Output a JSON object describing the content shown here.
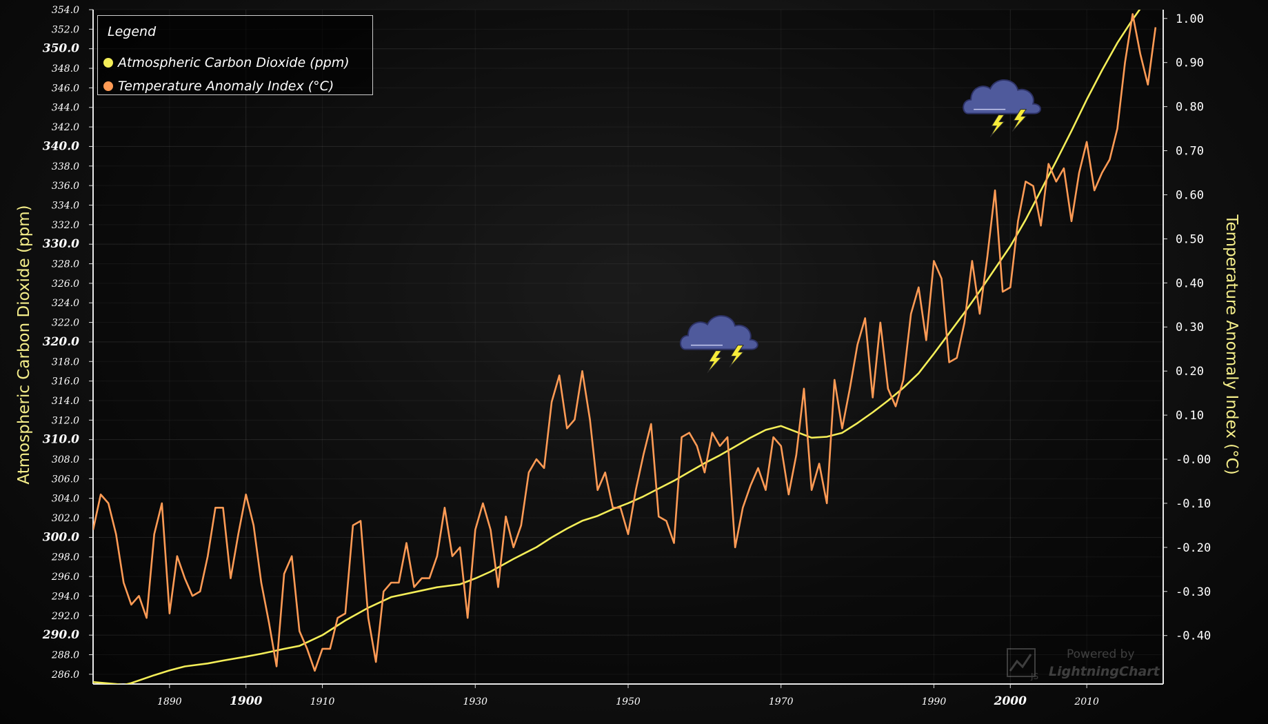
{
  "chart_data": {
    "type": "line",
    "title": "",
    "xlabel": "",
    "x_ticks": [
      1890,
      1900,
      1910,
      1930,
      1950,
      1970,
      1990,
      2000,
      2010
    ],
    "x_major_ticks": [
      1900,
      2000
    ],
    "xlim": [
      1880,
      2020
    ],
    "left_axis": {
      "label": "Atmospheric Carbon Dioxide (ppm)",
      "ylim": [
        285,
        354
      ],
      "ticks": [
        "286.0",
        "288.0",
        "290.0",
        "292.0",
        "294.0",
        "296.0",
        "298.0",
        "300.0",
        "302.0",
        "304.0",
        "306.0",
        "308.0",
        "310.0",
        "312.0",
        "314.0",
        "316.0",
        "318.0",
        "320.0",
        "322.0",
        "324.0",
        "326.0",
        "328.0",
        "330.0",
        "332.0",
        "334.0",
        "336.0",
        "338.0",
        "340.0",
        "342.0",
        "344.0",
        "346.0",
        "348.0",
        "350.0",
        "352.0",
        "354.0"
      ],
      "major_ticks": [
        "290.0",
        "300.0",
        "310.0",
        "320.0",
        "330.0",
        "340.0",
        "350.0"
      ]
    },
    "right_axis": {
      "label": "Temperature Anomaly Index (°C)",
      "ylim": [
        -0.51,
        1.02
      ],
      "ticks": [
        "-0.40",
        "-0.30",
        "-0.20",
        "-0.10",
        "-0.00",
        "0.10",
        "0.20",
        "0.30",
        "0.40",
        "0.50",
        "0.60",
        "0.70",
        "0.80",
        "0.90",
        "1.00"
      ]
    },
    "series": [
      {
        "name": "Atmospheric Carbon Dioxide (ppm)",
        "axis": "left",
        "color": "#f4ee58",
        "points": [
          [
            1880,
            285.2
          ],
          [
            1883,
            285.0
          ],
          [
            1884,
            284.9
          ],
          [
            1885,
            285.1
          ],
          [
            1888,
            285.9
          ],
          [
            1890,
            286.4
          ],
          [
            1892,
            286.8
          ],
          [
            1895,
            287.1
          ],
          [
            1897,
            287.4
          ],
          [
            1900,
            287.8
          ],
          [
            1902,
            288.1
          ],
          [
            1905,
            288.6
          ],
          [
            1907,
            288.9
          ],
          [
            1910,
            290.0
          ],
          [
            1913,
            291.5
          ],
          [
            1916,
            292.8
          ],
          [
            1919,
            293.9
          ],
          [
            1922,
            294.4
          ],
          [
            1925,
            294.9
          ],
          [
            1928,
            295.2
          ],
          [
            1930,
            295.8
          ],
          [
            1932,
            296.5
          ],
          [
            1935,
            297.8
          ],
          [
            1938,
            299.0
          ],
          [
            1940,
            300.0
          ],
          [
            1942,
            300.9
          ],
          [
            1944,
            301.7
          ],
          [
            1946,
            302.2
          ],
          [
            1948,
            302.9
          ],
          [
            1950,
            303.5
          ],
          [
            1952,
            304.2
          ],
          [
            1954,
            305.0
          ],
          [
            1956,
            305.8
          ],
          [
            1958,
            306.7
          ],
          [
            1960,
            307.6
          ],
          [
            1962,
            308.4
          ],
          [
            1964,
            309.3
          ],
          [
            1966,
            310.2
          ],
          [
            1968,
            311.0
          ],
          [
            1970,
            311.4
          ],
          [
            1972,
            310.8
          ],
          [
            1974,
            310.2
          ],
          [
            1976,
            310.3
          ],
          [
            1978,
            310.7
          ],
          [
            1980,
            311.7
          ],
          [
            1982,
            312.8
          ],
          [
            1984,
            314.0
          ],
          [
            1986,
            315.3
          ],
          [
            1988,
            316.8
          ],
          [
            1990,
            318.8
          ],
          [
            1992,
            320.9
          ],
          [
            1994,
            323.0
          ],
          [
            1996,
            325.2
          ],
          [
            1998,
            327.5
          ],
          [
            2000,
            329.8
          ],
          [
            2002,
            332.5
          ],
          [
            2004,
            335.5
          ],
          [
            2006,
            338.5
          ],
          [
            2008,
            341.6
          ],
          [
            2010,
            344.8
          ],
          [
            2012,
            347.8
          ],
          [
            2014,
            350.6
          ],
          [
            2016,
            353.0
          ],
          [
            2018,
            355.2
          ],
          [
            2020,
            357.4
          ]
        ]
      },
      {
        "name": "Temperature Anomaly Index (°C)",
        "axis": "right",
        "color": "#ff9b55",
        "points": [
          [
            1880,
            -0.16
          ],
          [
            1881,
            -0.08
          ],
          [
            1882,
            -0.1
          ],
          [
            1883,
            -0.17
          ],
          [
            1884,
            -0.28
          ],
          [
            1885,
            -0.33
          ],
          [
            1886,
            -0.31
          ],
          [
            1887,
            -0.36
          ],
          [
            1888,
            -0.17
          ],
          [
            1889,
            -0.1
          ],
          [
            1890,
            -0.35
          ],
          [
            1891,
            -0.22
          ],
          [
            1892,
            -0.27
          ],
          [
            1893,
            -0.31
          ],
          [
            1894,
            -0.3
          ],
          [
            1895,
            -0.22
          ],
          [
            1896,
            -0.11
          ],
          [
            1897,
            -0.11
          ],
          [
            1898,
            -0.27
          ],
          [
            1899,
            -0.17
          ],
          [
            1900,
            -0.08
          ],
          [
            1901,
            -0.15
          ],
          [
            1902,
            -0.28
          ],
          [
            1903,
            -0.37
          ],
          [
            1904,
            -0.47
          ],
          [
            1905,
            -0.26
          ],
          [
            1906,
            -0.22
          ],
          [
            1907,
            -0.39
          ],
          [
            1908,
            -0.43
          ],
          [
            1909,
            -0.48
          ],
          [
            1910,
            -0.43
          ],
          [
            1911,
            -0.43
          ],
          [
            1912,
            -0.36
          ],
          [
            1913,
            -0.35
          ],
          [
            1914,
            -0.15
          ],
          [
            1915,
            -0.14
          ],
          [
            1916,
            -0.36
          ],
          [
            1917,
            -0.46
          ],
          [
            1918,
            -0.3
          ],
          [
            1919,
            -0.28
          ],
          [
            1920,
            -0.28
          ],
          [
            1921,
            -0.19
          ],
          [
            1922,
            -0.29
          ],
          [
            1923,
            -0.27
          ],
          [
            1924,
            -0.27
          ],
          [
            1925,
            -0.22
          ],
          [
            1926,
            -0.11
          ],
          [
            1927,
            -0.22
          ],
          [
            1928,
            -0.2
          ],
          [
            1929,
            -0.36
          ],
          [
            1930,
            -0.16
          ],
          [
            1931,
            -0.1
          ],
          [
            1932,
            -0.16
          ],
          [
            1933,
            -0.29
          ],
          [
            1934,
            -0.13
          ],
          [
            1935,
            -0.2
          ],
          [
            1936,
            -0.15
          ],
          [
            1937,
            -0.03
          ],
          [
            1938,
            -0.0
          ],
          [
            1939,
            -0.02
          ],
          [
            1940,
            0.13
          ],
          [
            1941,
            0.19
          ],
          [
            1942,
            0.07
          ],
          [
            1943,
            0.09
          ],
          [
            1944,
            0.2
          ],
          [
            1945,
            0.09
          ],
          [
            1946,
            -0.07
          ],
          [
            1947,
            -0.03
          ],
          [
            1948,
            -0.11
          ],
          [
            1949,
            -0.11
          ],
          [
            1950,
            -0.17
          ],
          [
            1951,
            -0.07
          ],
          [
            1952,
            0.01
          ],
          [
            1953,
            0.08
          ],
          [
            1954,
            -0.13
          ],
          [
            1955,
            -0.14
          ],
          [
            1956,
            -0.19
          ],
          [
            1957,
            0.05
          ],
          [
            1958,
            0.06
          ],
          [
            1959,
            0.03
          ],
          [
            1960,
            -0.03
          ],
          [
            1961,
            0.06
          ],
          [
            1962,
            0.03
          ],
          [
            1963,
            0.05
          ],
          [
            1964,
            -0.2
          ],
          [
            1965,
            -0.11
          ],
          [
            1966,
            -0.06
          ],
          [
            1967,
            -0.02
          ],
          [
            1968,
            -0.07
          ],
          [
            1969,
            0.05
          ],
          [
            1970,
            0.03
          ],
          [
            1971,
            -0.08
          ],
          [
            1972,
            0.01
          ],
          [
            1973,
            0.16
          ],
          [
            1974,
            -0.07
          ],
          [
            1975,
            -0.01
          ],
          [
            1976,
            -0.1
          ],
          [
            1977,
            0.18
          ],
          [
            1978,
            0.07
          ],
          [
            1979,
            0.16
          ],
          [
            1980,
            0.26
          ],
          [
            1981,
            0.32
          ],
          [
            1982,
            0.14
          ],
          [
            1983,
            0.31
          ],
          [
            1984,
            0.16
          ],
          [
            1985,
            0.12
          ],
          [
            1986,
            0.18
          ],
          [
            1987,
            0.33
          ],
          [
            1988,
            0.39
          ],
          [
            1989,
            0.27
          ],
          [
            1990,
            0.45
          ],
          [
            1991,
            0.41
          ],
          [
            1992,
            0.22
          ],
          [
            1993,
            0.23
          ],
          [
            1994,
            0.31
          ],
          [
            1995,
            0.45
          ],
          [
            1996,
            0.33
          ],
          [
            1997,
            0.46
          ],
          [
            1998,
            0.61
          ],
          [
            1999,
            0.38
          ],
          [
            2000,
            0.39
          ],
          [
            2001,
            0.54
          ],
          [
            2002,
            0.63
          ],
          [
            2003,
            0.62
          ],
          [
            2004,
            0.53
          ],
          [
            2005,
            0.67
          ],
          [
            2006,
            0.63
          ],
          [
            2007,
            0.66
          ],
          [
            2008,
            0.54
          ],
          [
            2009,
            0.65
          ],
          [
            2010,
            0.72
          ],
          [
            2011,
            0.61
          ],
          [
            2012,
            0.65
          ],
          [
            2013,
            0.68
          ],
          [
            2014,
            0.75
          ],
          [
            2015,
            0.9
          ],
          [
            2016,
            1.01
          ],
          [
            2017,
            0.92
          ],
          [
            2018,
            0.85
          ],
          [
            2019,
            0.98
          ]
        ]
      }
    ],
    "annotations": [
      {
        "type": "storm-cloud-icon",
        "x": 1962,
        "y_right": 0.265
      },
      {
        "type": "storm-cloud-icon",
        "x": 1999,
        "y_right": 0.8
      }
    ],
    "legend": {
      "title": "Legend",
      "placement": "top-left",
      "items": [
        {
          "label": "Atmospheric Carbon Dioxide (ppm)",
          "color": "#f4ee58"
        },
        {
          "label": "Temperature Anomaly Index (°C)",
          "color": "#ff9b55"
        }
      ]
    },
    "grid": true
  },
  "watermark": {
    "powered": "Powered by",
    "brand": "LightningChart",
    "logo_badge": "JS"
  }
}
